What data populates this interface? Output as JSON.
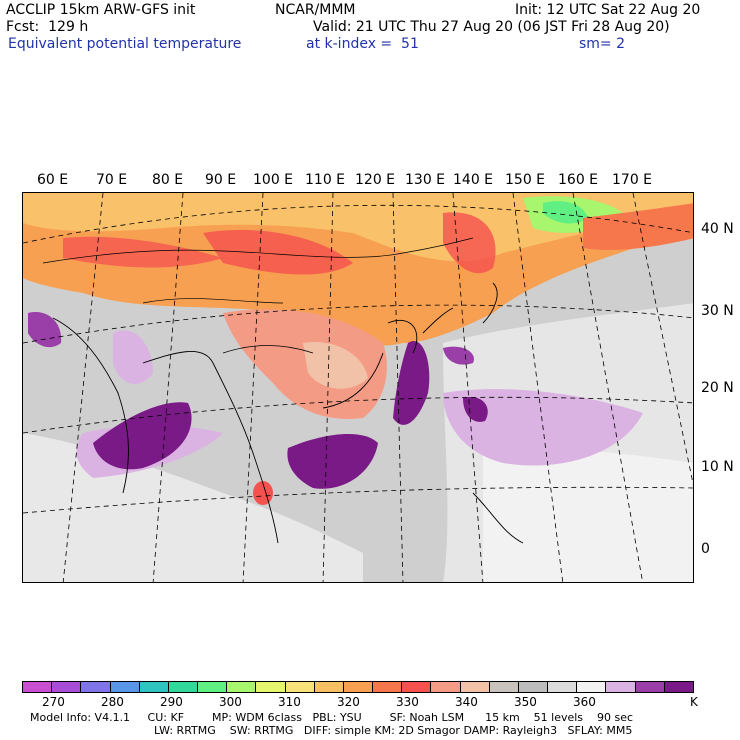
{
  "header": {
    "model": "ACCLIP 15km ARW-GFS init",
    "org": "NCAR/MMM",
    "init": "Init: 12 UTC Sat 22 Aug 20",
    "fcst": "Fcst:  129 h",
    "valid": "Valid: 21 UTC Thu 27 Aug 20 (06 JST Fri 28 Aug 20)",
    "field": "Equivalent potential temperature",
    "level": "at k-index =  51",
    "smooth": "sm= 2"
  },
  "lon_labels": [
    "60 E",
    "70 E",
    "80 E",
    "90 E",
    "100 E",
    "110 E",
    "120 E",
    "130 E",
    "140 E",
    "150 E",
    "160 E",
    "170 E"
  ],
  "lat_labels": [
    "40 N",
    "30 N",
    "20 N",
    "10 N",
    "0"
  ],
  "colorbar": {
    "colors": [
      "#c94fd0",
      "#a64fd6",
      "#7f74e8",
      "#5a96e8",
      "#2fc4c0",
      "#32d99a",
      "#5fef82",
      "#a8f56e",
      "#e6f56e",
      "#f9e27a",
      "#f8c063",
      "#f7a052",
      "#f7774c",
      "#f5514f",
      "#f49b86",
      "#f1c1a8",
      "#c9c3bd",
      "#bdbdbd",
      "#dcdcdc",
      "#f2f2f2",
      "#dab3e2",
      "#9a3fa8",
      "#7a1a86"
    ],
    "labels": [
      "270",
      "280",
      "290",
      "300",
      "310",
      "320",
      "330",
      "340",
      "350",
      "360",
      "K"
    ]
  },
  "footer": {
    "line1": "Model Info: V4.1.1     CU: KF        MP: WDM 6class   PBL: YSU        SF: Noah LSM      15 km    51 levels    90 sec",
    "line2": "LW: RRTMG    SW: RRTMG   DIFF: simple KM: 2D Smagor DAMP: Rayleigh3   SFLAY: MM5"
  }
}
